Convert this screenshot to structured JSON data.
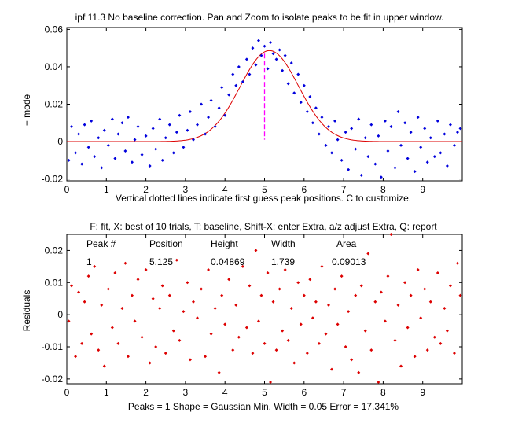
{
  "chart_data": [
    {
      "type": "scatter",
      "title": "ipf 11.3 No baseline correction. Pan and Zoom to isolate peaks to be fit in upper window.",
      "xlabel": "Vertical dotted lines indicate first guess peak positions. C to customize.",
      "ylabel": "+ mode",
      "xlim": [
        0,
        10
      ],
      "ylim": [
        -0.021,
        0.061
      ],
      "xticks": [
        "0",
        "1",
        "2",
        "3",
        "4",
        "5",
        "6",
        "7",
        "8",
        "9"
      ],
      "yticks": [
        "-0.02",
        "0",
        "0.02",
        "0.04",
        "0.06"
      ],
      "colors": {
        "points": "#0000dd",
        "fit": "#dd0000",
        "guess_line": "#ff00ff"
      },
      "fit_curve": {
        "shape": "Gaussian",
        "position": 5.125,
        "height": 0.04869,
        "width": 1.739
      },
      "first_guess_position": 5.0,
      "series": [
        {
          "name": "data",
          "x": [
            0.05,
            0.12,
            0.22,
            0.3,
            0.38,
            0.45,
            0.55,
            0.62,
            0.7,
            0.8,
            0.88,
            0.95,
            1.05,
            1.15,
            1.22,
            1.3,
            1.4,
            1.48,
            1.55,
            1.65,
            1.72,
            1.8,
            1.9,
            2.0,
            2.1,
            2.18,
            2.25,
            2.35,
            2.42,
            2.5,
            2.6,
            2.7,
            2.78,
            2.85,
            2.95,
            3.05,
            3.12,
            3.2,
            3.3,
            3.4,
            3.5,
            3.58,
            3.65,
            3.75,
            3.85,
            3.92,
            4.0,
            4.1,
            4.2,
            4.28,
            4.35,
            4.45,
            4.55,
            4.62,
            4.7,
            4.78,
            4.85,
            4.92,
            5.0,
            5.08,
            5.15,
            5.22,
            5.3,
            5.38,
            5.45,
            5.52,
            5.6,
            5.68,
            5.75,
            5.85,
            5.92,
            6.0,
            6.08,
            6.15,
            6.22,
            6.3,
            6.38,
            6.45,
            6.55,
            6.62,
            6.7,
            6.78,
            6.85,
            6.95,
            7.05,
            7.12,
            7.2,
            7.3,
            7.38,
            7.45,
            7.55,
            7.62,
            7.7,
            7.8,
            7.88,
            7.95,
            8.05,
            8.12,
            8.2,
            8.3,
            8.38,
            8.45,
            8.55,
            8.62,
            8.7,
            8.8,
            8.88,
            8.95,
            9.05,
            9.12,
            9.2,
            9.3,
            9.38,
            9.45,
            9.55,
            9.62,
            9.7,
            9.8,
            9.88,
            9.95
          ],
          "y": [
            -0.01,
            0.008,
            -0.006,
            0.004,
            -0.012,
            0.009,
            -0.003,
            0.011,
            -0.008,
            0.002,
            -0.014,
            0.006,
            -0.002,
            0.012,
            -0.009,
            0.004,
            0.01,
            -0.005,
            0.013,
            -0.011,
            0.001,
            0.008,
            -0.007,
            0.003,
            -0.013,
            0.007,
            -0.004,
            0.012,
            -0.01,
            0.002,
            0.009,
            -0.006,
            0.005,
            0.014,
            -0.003,
            0.006,
            0.016,
            0.001,
            0.009,
            0.02,
            0.004,
            0.013,
            0.022,
            0.008,
            0.018,
            0.029,
            0.014,
            0.025,
            0.036,
            0.03,
            0.04,
            0.032,
            0.044,
            0.036,
            0.05,
            0.041,
            0.054,
            0.046,
            0.051,
            0.039,
            0.053,
            0.047,
            0.044,
            0.049,
            0.038,
            0.046,
            0.031,
            0.042,
            0.026,
            0.036,
            0.021,
            0.03,
            0.016,
            0.024,
            0.01,
            0.018,
            0.004,
            0.013,
            -0.002,
            0.008,
            -0.006,
            0.011,
            0.001,
            -0.01,
            0.005,
            -0.015,
            0.007,
            -0.004,
            0.012,
            -0.018,
            0.002,
            -0.008,
            0.009,
            -0.012,
            0.003,
            -0.019,
            0.011,
            -0.005,
            0.008,
            -0.014,
            0.016,
            -0.002,
            0.01,
            -0.009,
            0.005,
            -0.016,
            0.013,
            -0.003,
            0.007,
            -0.011,
            0.002,
            -0.008,
            0.011,
            -0.006,
            0.004,
            -0.013,
            0.009,
            -0.002,
            0.005,
            0.007
          ]
        },
        {
          "name": "fit",
          "x": [],
          "y": []
        }
      ]
    },
    {
      "type": "scatter",
      "title": "F: fit, X: best of 10 trials, T: baseline, Shift-X: enter Extra, a/z adjust Extra, Q: report",
      "ylabel": "Residuals",
      "xlabel": "Peaks = 1     Shape = Gaussian     Min. Width = 0.05     Error = 17.341%",
      "xlim": [
        0,
        10
      ],
      "ylim": [
        -0.0215,
        0.025
      ],
      "xticks": [
        "0",
        "1",
        "2",
        "3",
        "4",
        "5",
        "6",
        "7",
        "8",
        "9"
      ],
      "yticks": [
        "-0.02",
        "-0.01",
        "0",
        "0.01",
        "0.02"
      ],
      "colors": {
        "points": "#dd0000"
      },
      "series": [
        {
          "name": "residuals",
          "x": [
            0.05,
            0.12,
            0.22,
            0.3,
            0.38,
            0.45,
            0.55,
            0.62,
            0.7,
            0.8,
            0.88,
            0.95,
            1.05,
            1.15,
            1.22,
            1.3,
            1.4,
            1.48,
            1.55,
            1.65,
            1.72,
            1.8,
            1.9,
            2.0,
            2.1,
            2.18,
            2.25,
            2.35,
            2.42,
            2.5,
            2.6,
            2.7,
            2.78,
            2.85,
            2.95,
            3.05,
            3.12,
            3.2,
            3.3,
            3.4,
            3.5,
            3.58,
            3.65,
            3.75,
            3.85,
            3.92,
            4.0,
            4.1,
            4.2,
            4.28,
            4.35,
            4.45,
            4.55,
            4.62,
            4.7,
            4.78,
            4.85,
            4.92,
            5.0,
            5.08,
            5.15,
            5.22,
            5.3,
            5.38,
            5.45,
            5.52,
            5.6,
            5.68,
            5.75,
            5.85,
            5.92,
            6.0,
            6.08,
            6.15,
            6.22,
            6.3,
            6.38,
            6.45,
            6.55,
            6.62,
            6.7,
            6.78,
            6.85,
            6.95,
            7.05,
            7.12,
            7.2,
            7.3,
            7.38,
            7.45,
            7.55,
            7.62,
            7.7,
            7.8,
            7.88,
            7.95,
            8.05,
            8.12,
            8.2,
            8.3,
            8.38,
            8.45,
            8.55,
            8.62,
            8.7,
            8.8,
            8.88,
            8.95,
            9.05,
            9.12,
            9.2,
            9.3,
            9.38,
            9.45,
            9.55,
            9.62,
            9.7,
            9.8,
            9.88,
            9.95
          ],
          "y": [
            -0.002,
            0.009,
            -0.013,
            0.007,
            -0.009,
            0.004,
            0.012,
            -0.006,
            0.015,
            -0.011,
            0.003,
            -0.016,
            0.008,
            -0.004,
            0.013,
            -0.009,
            0.002,
            0.016,
            -0.013,
            0.006,
            -0.002,
            0.011,
            -0.007,
            0.014,
            -0.015,
            0.005,
            -0.01,
            0.002,
            0.009,
            -0.012,
            0.006,
            -0.005,
            0.017,
            -0.008,
            0.001,
            0.01,
            -0.014,
            0.004,
            -0.001,
            0.008,
            -0.013,
            0.014,
            -0.006,
            0.002,
            -0.018,
            0.006,
            -0.003,
            0.011,
            -0.011,
            0.003,
            -0.007,
            0.015,
            -0.004,
            0.009,
            -0.012,
            0.02,
            -0.002,
            0.006,
            -0.009,
            0.013,
            -0.021,
            0.004,
            -0.011,
            0.008,
            -0.005,
            0.014,
            -0.008,
            0.002,
            -0.015,
            0.01,
            -0.003,
            0.006,
            -0.012,
            0.011,
            -0.001,
            0.004,
            -0.009,
            0.015,
            -0.006,
            0.003,
            -0.017,
            0.008,
            -0.003,
            0.012,
            -0.01,
            0.001,
            -0.014,
            0.006,
            -0.018,
            0.009,
            -0.005,
            0.019,
            -0.011,
            0.004,
            -0.021,
            0.007,
            -0.002,
            0.012,
            0.025,
            -0.008,
            0.003,
            -0.016,
            0.01,
            -0.004,
            0.006,
            -0.013,
            0.014,
            -0.001,
            0.008,
            -0.011,
            0.004,
            -0.007,
            0.013,
            -0.009,
            0.002,
            -0.005,
            0.009,
            -0.012,
            0.016,
            0.006
          ]
        }
      ],
      "table": {
        "headers": [
          "Peak #",
          "Position",
          "Height",
          "Width",
          "Area"
        ],
        "rows": [
          [
            "1",
            "5.125",
            "0.04869",
            "1.739",
            "0.09013"
          ]
        ]
      }
    }
  ]
}
